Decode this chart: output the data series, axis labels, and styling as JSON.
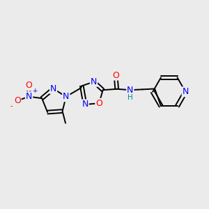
{
  "background_color": "#ebebeb",
  "atom_colors": {
    "N": "#0000ff",
    "O": "#ff0000",
    "C": "#000000",
    "H": "#008b8b"
  },
  "lw": 1.4,
  "fs": 9.0,
  "fs_small": 7.5
}
